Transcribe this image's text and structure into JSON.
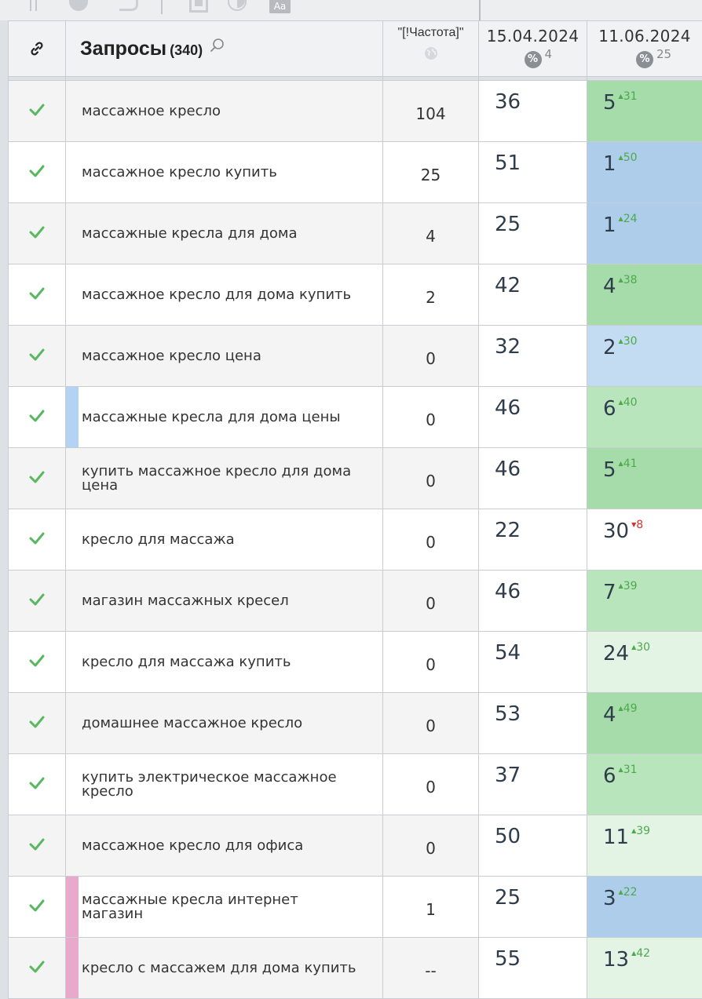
{
  "toolbar": {
    "aa_label": "Aa"
  },
  "header": {
    "title": "Запросы",
    "count": "(340)",
    "frequency_label": "\"[!Частота]\"",
    "dates": [
      {
        "date": "15.04.2024",
        "pct_badge": "%",
        "pct_value": "4"
      },
      {
        "date": "11.06.2024",
        "pct_badge": "%",
        "pct_value": "25"
      }
    ]
  },
  "colors": {
    "pos_green_strong": "#9fdaa4",
    "pos_green_mid": "#b8e5bb",
    "pos_green_light": "#e3f4e5",
    "pos_blue": "#aecdea",
    "pos_blue_light": "#c4dcf1",
    "pos_white": "#ffffff",
    "check": "#59b85f",
    "marker_blue": "#b3d2f4",
    "marker_pink": "#e8a9cc"
  },
  "rows": [
    {
      "query": "массажное кресло",
      "freq": "104",
      "pos1": "36",
      "pos2": "5",
      "delta": "31",
      "dir": "up",
      "bg": "#a6dcaa",
      "marker": ""
    },
    {
      "query": "массажное кресло купить",
      "freq": "25",
      "pos1": "51",
      "pos2": "1",
      "delta": "50",
      "dir": "up",
      "bg": "#aecdea",
      "marker": ""
    },
    {
      "query": "массажные кресла для дома",
      "freq": "4",
      "pos1": "25",
      "pos2": "1",
      "delta": "24",
      "dir": "up",
      "bg": "#aecdea",
      "marker": ""
    },
    {
      "query": "массажное кресло для дома купить",
      "freq": "2",
      "pos1": "42",
      "pos2": "4",
      "delta": "38",
      "dir": "up",
      "bg": "#a6dcaa",
      "marker": ""
    },
    {
      "query": "массажное кресло цена",
      "freq": "0",
      "pos1": "32",
      "pos2": "2",
      "delta": "30",
      "dir": "up",
      "bg": "#c4dcf1",
      "marker": ""
    },
    {
      "query": "массажные кресла для дома цены",
      "freq": "0",
      "pos1": "46",
      "pos2": "6",
      "delta": "40",
      "dir": "up",
      "bg": "#b8e5bb",
      "marker": "#b3d2f4"
    },
    {
      "query": "купить массажное кресло для дома цена",
      "freq": "0",
      "pos1": "46",
      "pos2": "5",
      "delta": "41",
      "dir": "up",
      "bg": "#a6dcaa",
      "marker": ""
    },
    {
      "query": "кресло для массажа",
      "freq": "0",
      "pos1": "22",
      "pos2": "30",
      "delta": "8",
      "dir": "down",
      "bg": "#ffffff",
      "marker": ""
    },
    {
      "query": "магазин массажных кресел",
      "freq": "0",
      "pos1": "46",
      "pos2": "7",
      "delta": "39",
      "dir": "up",
      "bg": "#b8e5bb",
      "marker": ""
    },
    {
      "query": "кресло для массажа купить",
      "freq": "0",
      "pos1": "54",
      "pos2": "24",
      "delta": "30",
      "dir": "up",
      "bg": "#e3f4e5",
      "marker": ""
    },
    {
      "query": "домашнее массажное кресло",
      "freq": "0",
      "pos1": "53",
      "pos2": "4",
      "delta": "49",
      "dir": "up",
      "bg": "#a6dcaa",
      "marker": ""
    },
    {
      "query": "купить электрическое массажное кресло",
      "freq": "0",
      "pos1": "37",
      "pos2": "6",
      "delta": "31",
      "dir": "up",
      "bg": "#b8e5bb",
      "marker": ""
    },
    {
      "query": "массажное кресло для офиса",
      "freq": "0",
      "pos1": "50",
      "pos2": "11",
      "delta": "39",
      "dir": "up",
      "bg": "#e3f4e5",
      "marker": ""
    },
    {
      "query": "массажные кресла интернет магазин",
      "freq": "1",
      "pos1": "25",
      "pos2": "3",
      "delta": "22",
      "dir": "up",
      "bg": "#aecdea",
      "marker": "#e8a9cc"
    },
    {
      "query": "кресло с массажем для дома купить",
      "freq": "--",
      "pos1": "55",
      "pos2": "13",
      "delta": "42",
      "dir": "up",
      "bg": "#e3f4e5",
      "marker": "#e8a9cc"
    }
  ]
}
